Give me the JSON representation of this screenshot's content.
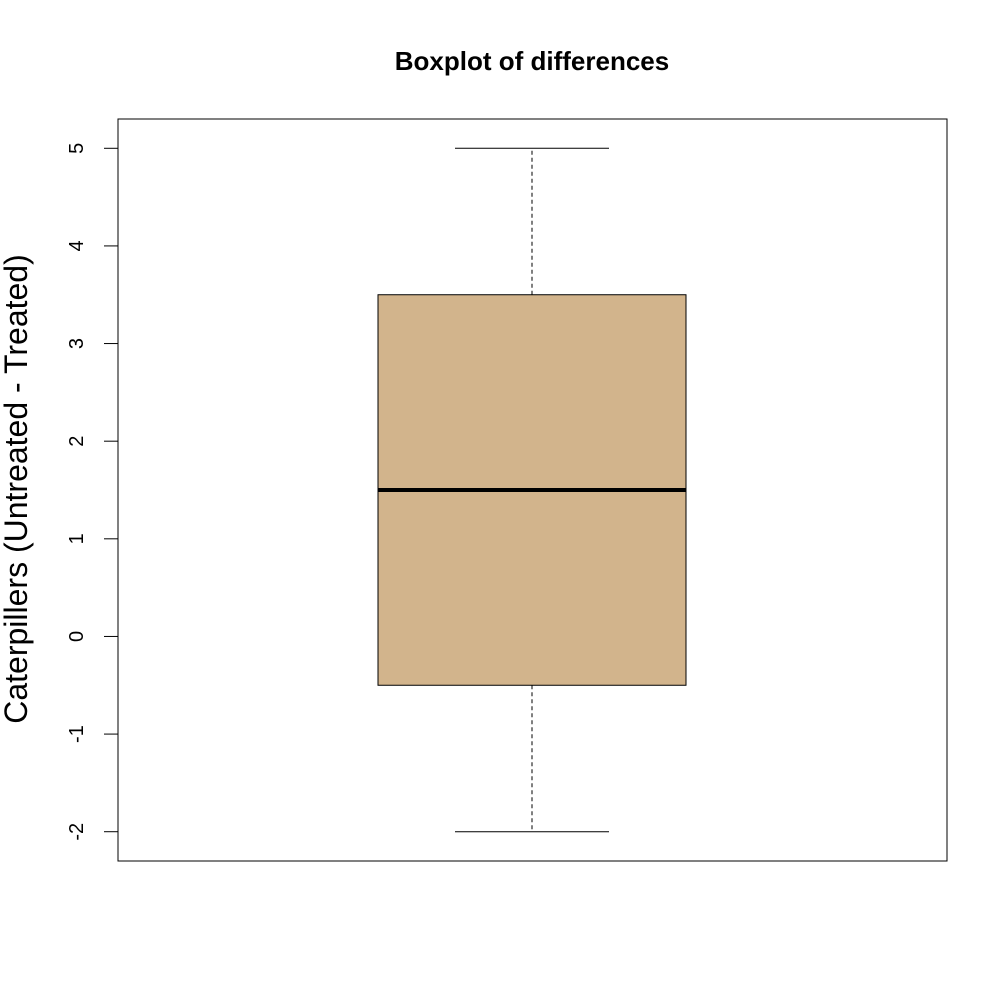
{
  "chart_data": {
    "type": "box",
    "title": "Boxplot of differences",
    "xlabel": "",
    "ylabel": "Caterpillers (Untreated - Treated)",
    "ylim": [
      -2.3,
      5.3
    ],
    "yticks": [
      -2,
      -1,
      0,
      1,
      2,
      3,
      4,
      5
    ],
    "ytick_labels": [
      "-2",
      "-1",
      "0",
      "1",
      "2",
      "3",
      "4",
      "5"
    ],
    "box": {
      "min": -2,
      "q1": -0.5,
      "median": 1.5,
      "q3": 3.5,
      "max": 5
    },
    "box_fill": "#D2B48C",
    "line_color": "#000000",
    "grid": false,
    "legend": "none"
  }
}
